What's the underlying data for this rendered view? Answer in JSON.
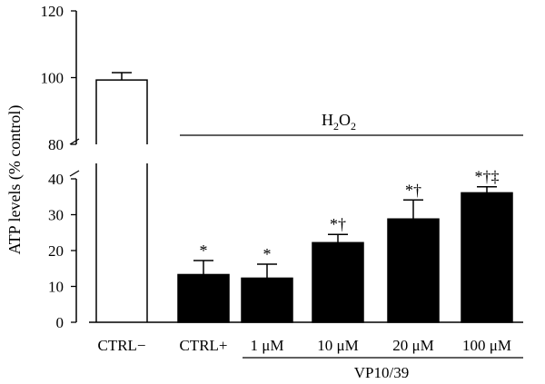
{
  "chart_data": {
    "type": "bar",
    "ylabel": "ATP levels (% control)",
    "categories": [
      "CTRL−",
      "CTRL+",
      "1 μM",
      "10 μM",
      "20 μM",
      "100 μM"
    ],
    "values": [
      99.3,
      13.3,
      12.3,
      22.2,
      28.8,
      36.1
    ],
    "errors": [
      2.2,
      3.9,
      3.9,
      2.3,
      5.3,
      1.7
    ],
    "fills": [
      "#ffffff",
      "#000000",
      "#000000",
      "#000000",
      "#000000",
      "#000000"
    ],
    "significance": [
      "",
      "*",
      "*",
      "*†",
      "*†",
      "*†‡"
    ],
    "yticks": [
      0,
      10,
      20,
      30,
      40,
      80,
      100,
      120
    ],
    "ylim_lower": [
      0,
      40
    ],
    "ylim_upper": [
      80,
      120
    ],
    "axis_break": true,
    "h2o2_label": {
      "base": "H",
      "sub1": "2",
      "mid": "O",
      "sub2": "2"
    },
    "group_label": "VP10/39",
    "grid": false,
    "legend": "none"
  }
}
